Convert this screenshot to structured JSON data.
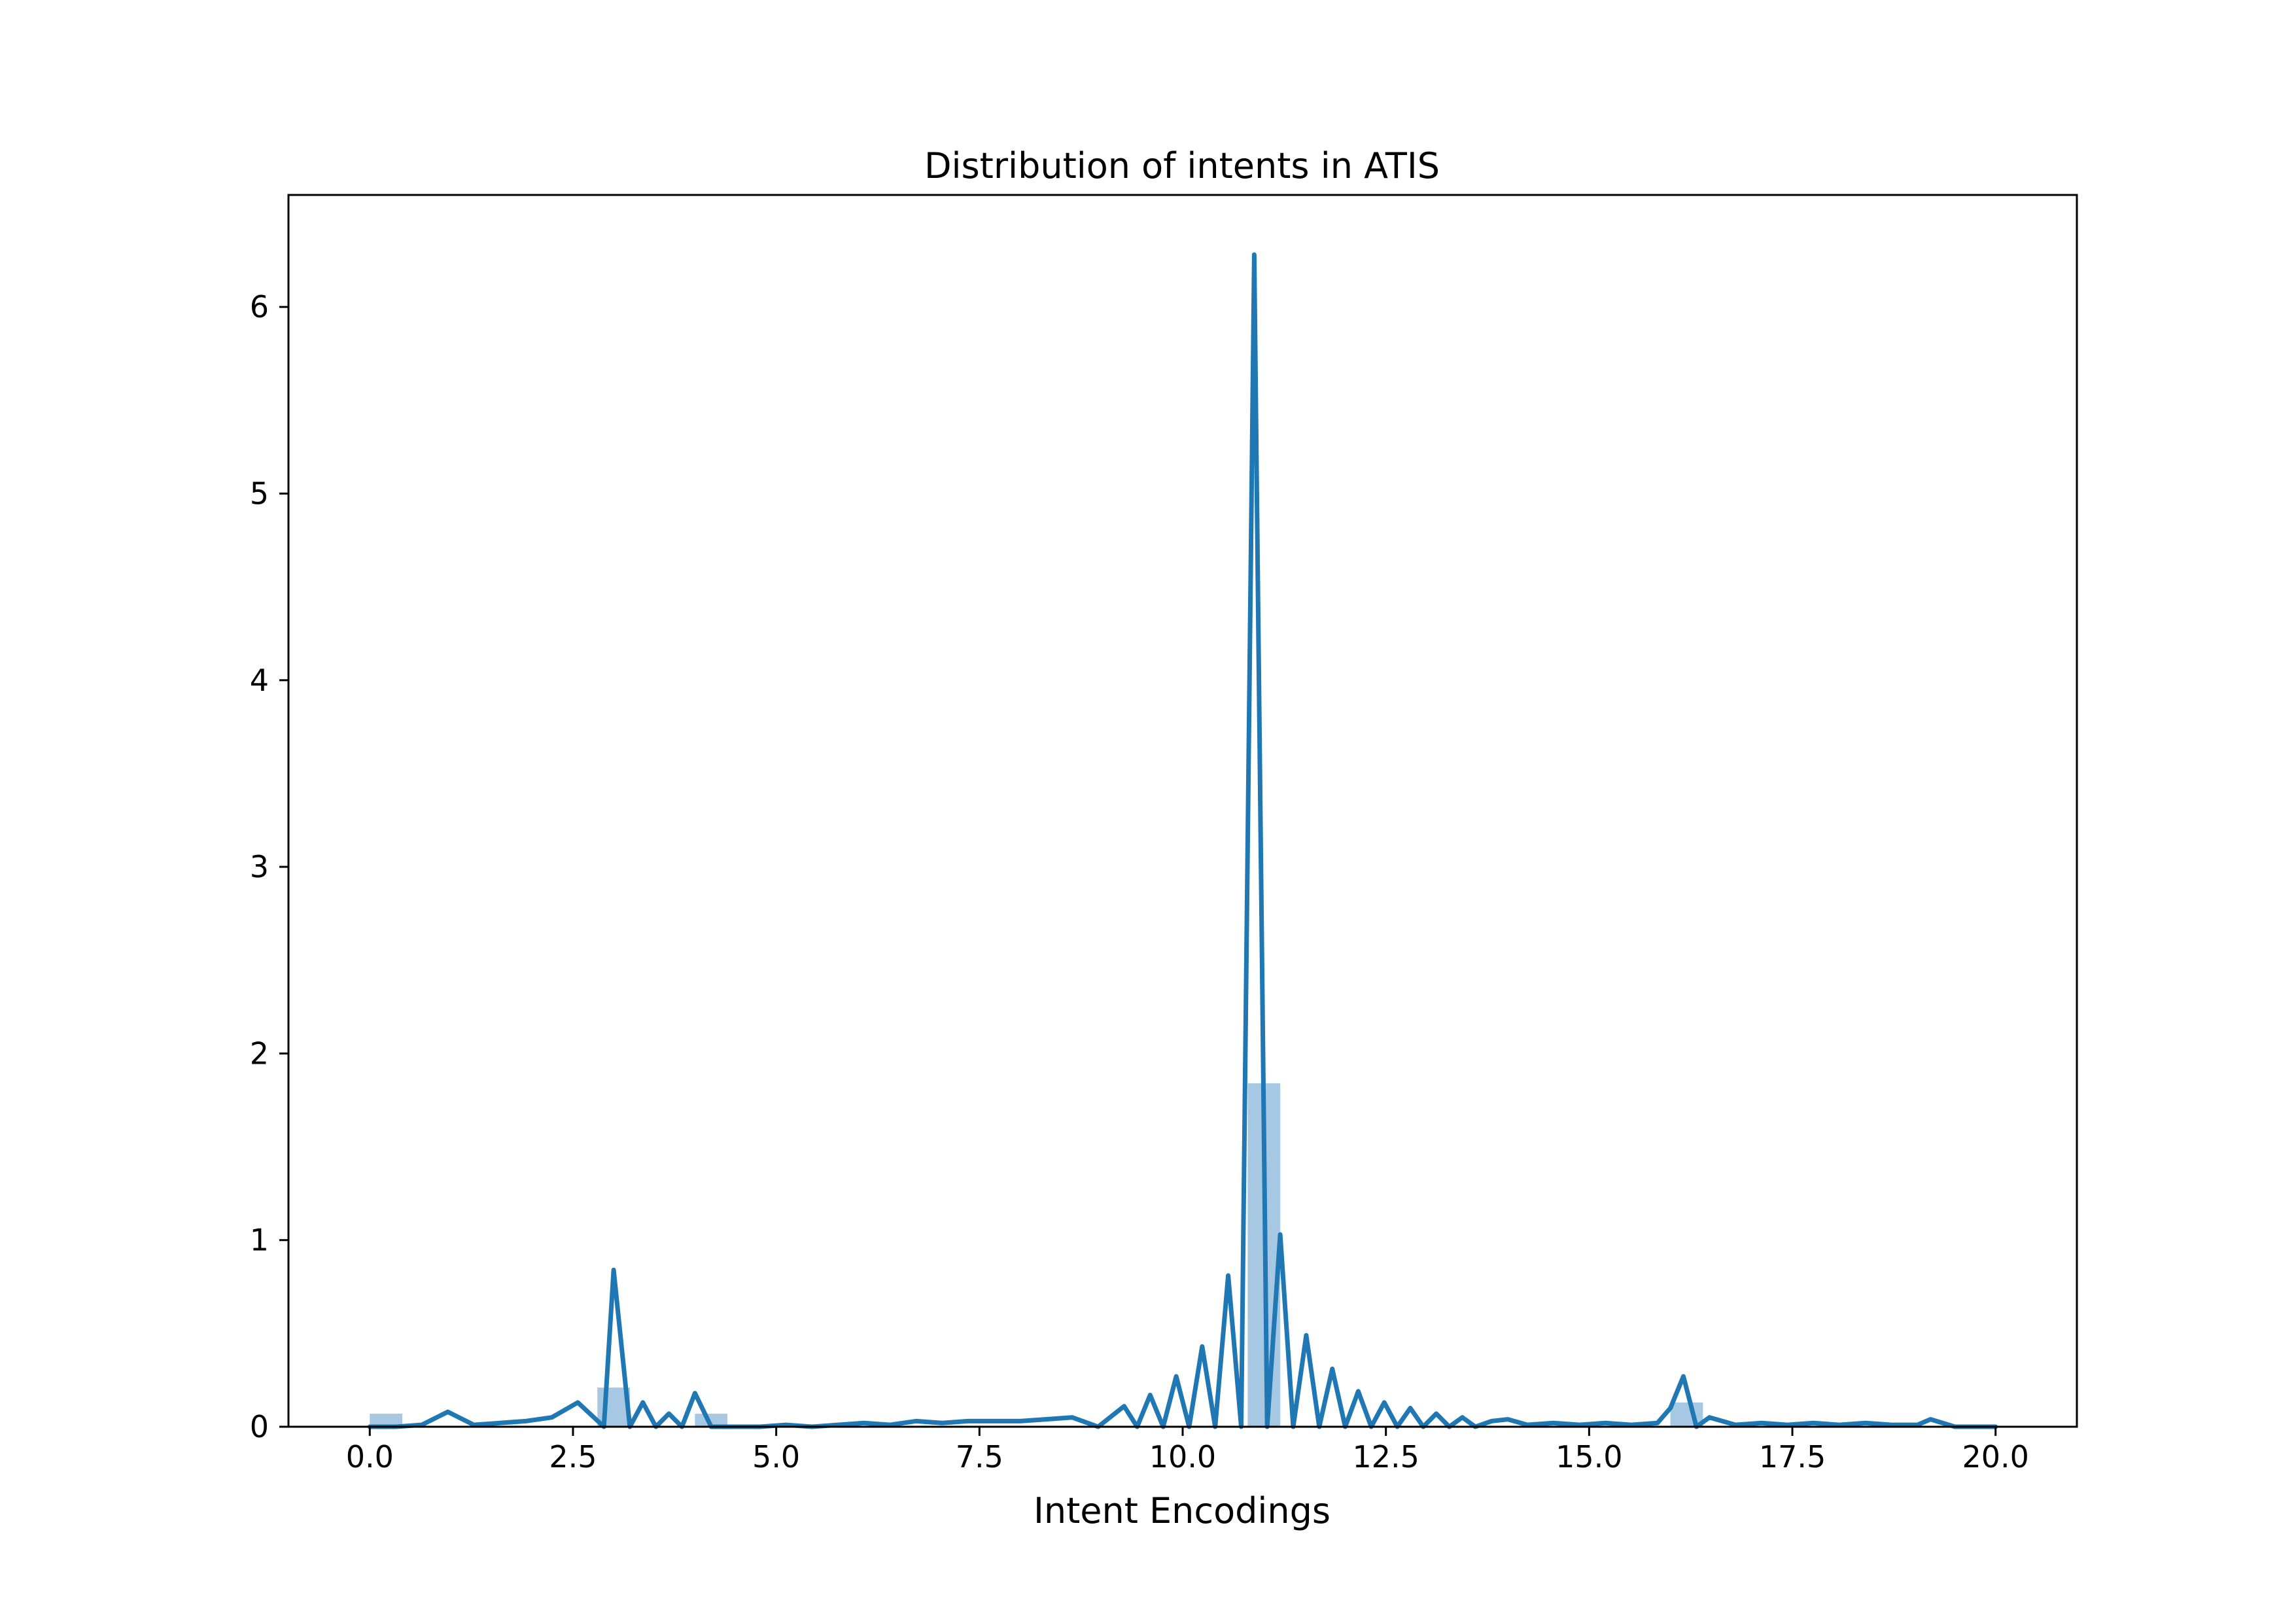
{
  "chart_data": {
    "type": "bar",
    "title": "Distribution of intents in ATIS",
    "xlabel": "Intent Encodings",
    "ylabel": "",
    "xlim": [
      -1.0,
      21.0
    ],
    "ylim": [
      0,
      6.6
    ],
    "grid": false,
    "xticks": [
      0.0,
      2.5,
      5.0,
      7.5,
      10.0,
      12.5,
      15.0,
      17.5,
      20.0
    ],
    "xtick_labels": [
      "0.0",
      "2.5",
      "5.0",
      "7.5",
      "10.0",
      "12.5",
      "15.0",
      "17.5",
      "20.0"
    ],
    "yticks": [
      0,
      1,
      2,
      3,
      4,
      5,
      6
    ],
    "ytick_labels": [
      "0",
      "1",
      "2",
      "3",
      "4",
      "5",
      "6"
    ],
    "colors": {
      "line": "#1f77b4",
      "bars": "#a6c8e3",
      "frame": "#000000"
    },
    "histogram": {
      "name": "histogram",
      "bins": [
        {
          "x0": 0.0,
          "x1": 0.4,
          "value": 0.07
        },
        {
          "x0": 2.8,
          "x1": 3.2,
          "value": 0.21
        },
        {
          "x0": 4.0,
          "x1": 4.4,
          "value": 0.07
        },
        {
          "x0": 10.8,
          "x1": 11.2,
          "value": 1.84
        },
        {
          "x0": 16.0,
          "x1": 16.4,
          "value": 0.13
        }
      ]
    },
    "series": [
      {
        "name": "density",
        "x": [
          0,
          0.32,
          0.64,
          0.96,
          1.28,
          1.6,
          1.92,
          2.24,
          2.56,
          2.88,
          3.0,
          3.2,
          3.36,
          3.52,
          3.68,
          3.84,
          4.0,
          4.2,
          4.5,
          4.8,
          5.12,
          5.44,
          5.76,
          6.08,
          6.4,
          6.72,
          7.04,
          7.36,
          7.68,
          8.0,
          8.32,
          8.64,
          8.96,
          9.28,
          9.44,
          9.6,
          9.76,
          9.92,
          10.08,
          10.24,
          10.4,
          10.56,
          10.72,
          10.88,
          11.04,
          11.2,
          11.36,
          11.52,
          11.68,
          11.84,
          12.0,
          12.16,
          12.32,
          12.48,
          12.64,
          12.8,
          12.96,
          13.12,
          13.28,
          13.44,
          13.6,
          13.8,
          14.0,
          14.24,
          14.56,
          14.88,
          15.2,
          15.52,
          15.84,
          16.0,
          16.16,
          16.32,
          16.48,
          16.8,
          17.12,
          17.44,
          17.76,
          18.08,
          18.4,
          18.72,
          19.04,
          19.2,
          19.5,
          20.0
        ],
        "y": [
          0,
          0.0,
          0.01,
          0.08,
          0.01,
          0.02,
          0.03,
          0.05,
          0.13,
          0.0,
          0.84,
          0.0,
          0.13,
          0.0,
          0.07,
          0.0,
          0.18,
          0.0,
          0.0,
          0.0,
          0.01,
          0.0,
          0.01,
          0.02,
          0.01,
          0.03,
          0.02,
          0.03,
          0.03,
          0.03,
          0.04,
          0.05,
          0.0,
          0.11,
          0.0,
          0.17,
          0.0,
          0.27,
          0.0,
          0.43,
          0.0,
          0.81,
          0.0,
          6.28,
          0.0,
          1.03,
          0.0,
          0.49,
          0.0,
          0.31,
          0.0,
          0.19,
          0.0,
          0.13,
          0.0,
          0.1,
          0.0,
          0.07,
          0.0,
          0.05,
          0.0,
          0.03,
          0.04,
          0.01,
          0.02,
          0.01,
          0.02,
          0.01,
          0.02,
          0.1,
          0.27,
          0.0,
          0.05,
          0.01,
          0.02,
          0.01,
          0.02,
          0.01,
          0.02,
          0.01,
          0.01,
          0.04,
          0.0,
          0.0
        ]
      }
    ]
  }
}
